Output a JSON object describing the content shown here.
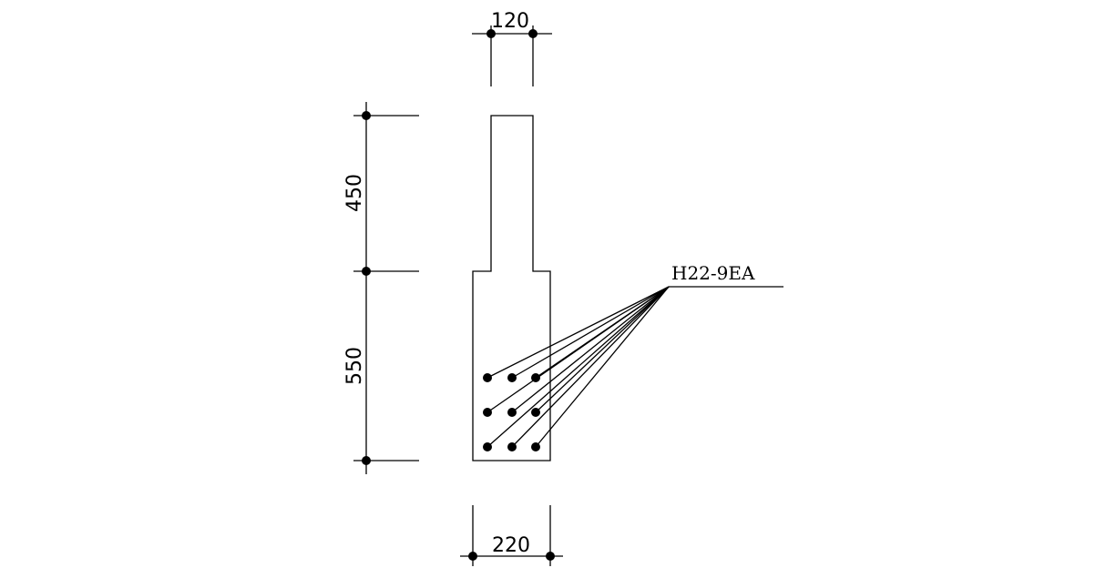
{
  "dimensions": {
    "web_width": "120",
    "flange_width": "220",
    "web_height": "450",
    "flange_height": "550"
  },
  "rebar_callout": {
    "label": "H22-9EA",
    "bar_count": 9
  }
}
